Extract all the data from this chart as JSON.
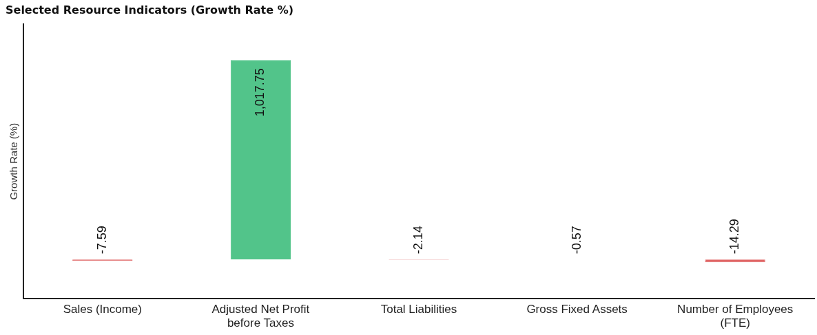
{
  "chart_data": {
    "type": "bar",
    "title": "Selected Resource Indicators (Growth Rate %)",
    "ylabel": "Growth Rate (%)",
    "categories": [
      "Sales (Income)",
      "Adjusted Net Profit before Taxes",
      "Total Liabilities",
      "Gross Fixed Assets",
      "Number of Employees (FTE)"
    ],
    "values": [
      -7.59,
      1017.75,
      -2.14,
      -0.57,
      -14.29
    ],
    "colors": [
      "#e06666",
      "#52c48a",
      "#e06666",
      "#e06666",
      "#e06666"
    ],
    "value_labels": [
      "-7.59",
      "1,017.75",
      "-2.14",
      "-0.57",
      "-14.29"
    ],
    "grid": false,
    "legend": false
  }
}
